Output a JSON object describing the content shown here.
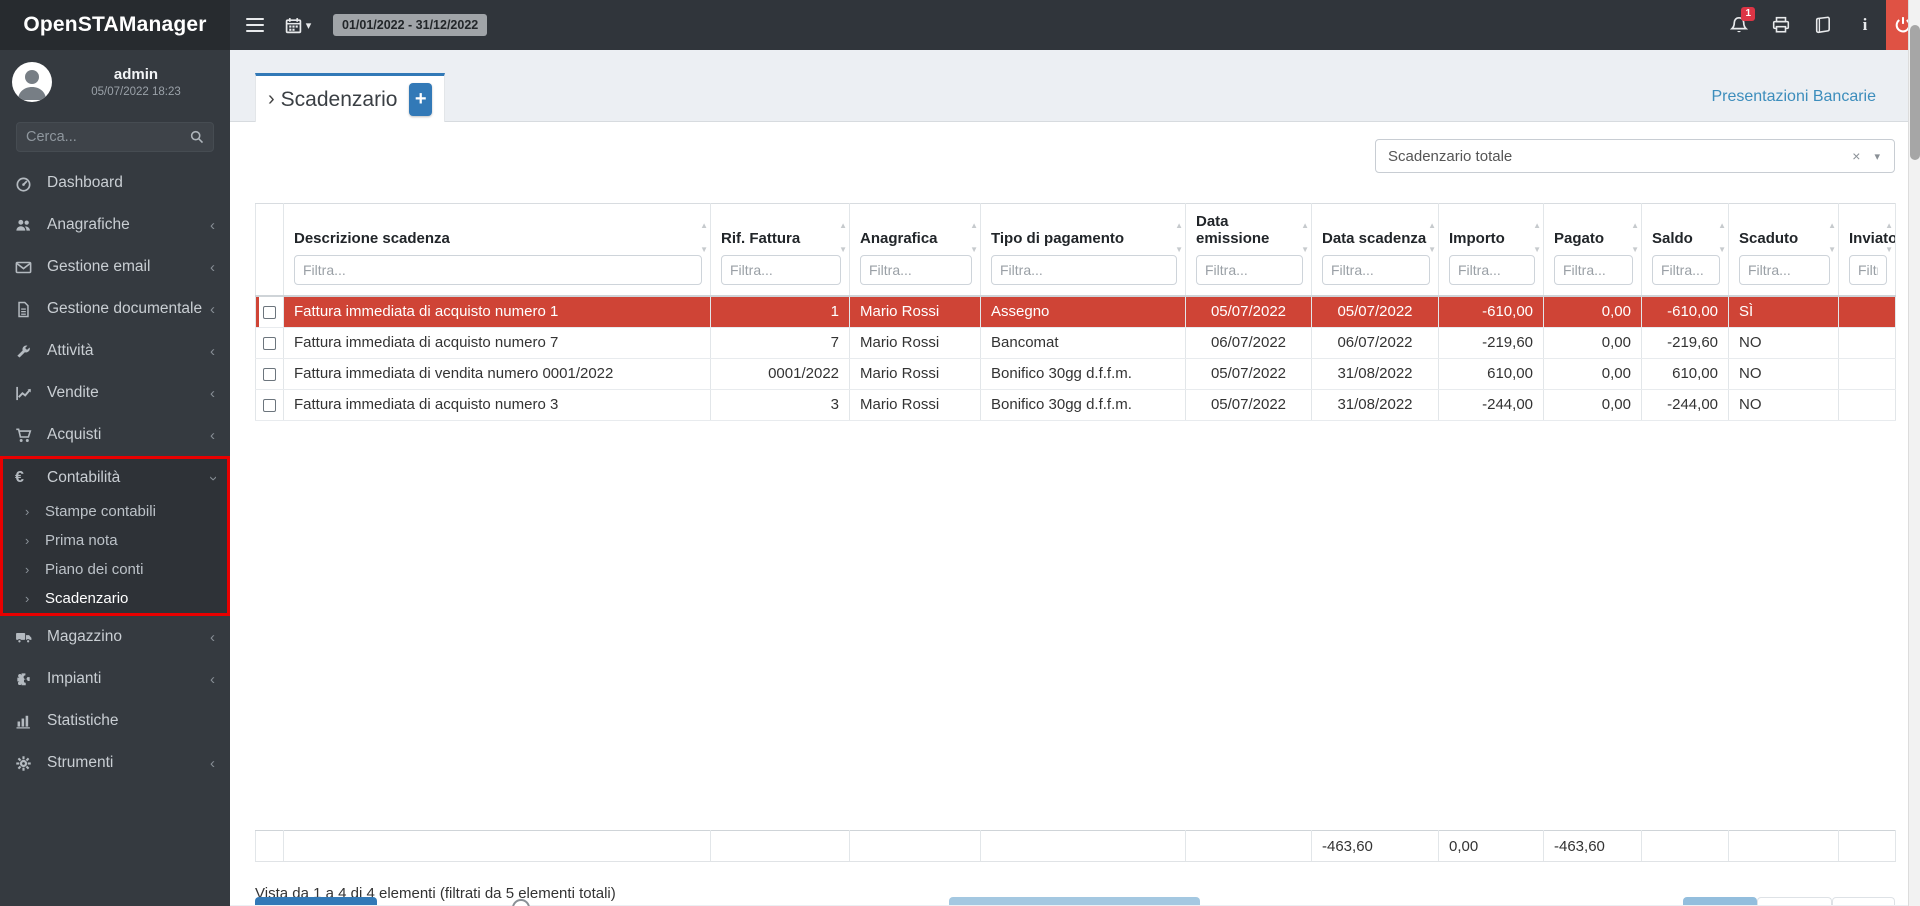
{
  "app": {
    "name": "OpenSTAManager"
  },
  "colors": {
    "accent": "#3279b7",
    "highlight_row": "#cf4436",
    "logout_bg": "#df5244",
    "annotation_box": "#e80000"
  },
  "topbar": {
    "date_range": "01/01/2022 - 31/12/2022",
    "notifications_count": "1",
    "caret": "▾"
  },
  "sidebar": {
    "user": {
      "name": "admin",
      "datetime": "05/07/2022 18:23"
    },
    "search_placeholder": "Cerca...",
    "items": [
      {
        "icon": "tachometer-icon",
        "label": "Dashboard",
        "chevron": ""
      },
      {
        "icon": "users-icon",
        "label": "Anagrafiche",
        "chevron": "‹"
      },
      {
        "icon": "envelope-icon",
        "label": "Gestione email",
        "chevron": "‹"
      },
      {
        "icon": "file-icon",
        "label": "Gestione documentale",
        "chevron": "‹"
      },
      {
        "icon": "wrench-icon",
        "label": "Attività",
        "chevron": "‹"
      },
      {
        "icon": "chart-line-icon",
        "label": "Vendite",
        "chevron": "‹"
      },
      {
        "icon": "cart-icon",
        "label": "Acquisti",
        "chevron": "‹"
      },
      {
        "icon": "euro-icon",
        "label": "Contabilità",
        "chevron": "‹",
        "expanded": true,
        "submenu": [
          "Stampe contabili",
          "Prima nota",
          "Piano dei conti",
          "Scadenzario"
        ],
        "active_submenu": "Scadenzario"
      },
      {
        "icon": "truck-icon",
        "label": "Magazzino",
        "chevron": "‹"
      },
      {
        "icon": "puzzle-icon",
        "label": "Impianti",
        "chevron": "‹"
      },
      {
        "icon": "bar-chart-icon",
        "label": "Statistiche",
        "chevron": ""
      },
      {
        "icon": "gear-icon",
        "label": "Strumenti",
        "chevron": "‹"
      }
    ]
  },
  "main": {
    "tab_title": "Scadenzario",
    "tab_arrow": "›",
    "add_button": "+",
    "bank_link": "Presentazioni Bancarie",
    "filter_select": {
      "value": "Scadenzario totale",
      "clear": "×",
      "caret": "▾"
    },
    "table": {
      "filter_placeholder": "Filtra...",
      "columns": [
        "Descrizione scadenza",
        "Rif. Fattura",
        "Anagrafica",
        "Tipo di pagamento",
        "Data emissione",
        "Data scadenza",
        "Importo",
        "Pagato",
        "Saldo",
        "Scaduto",
        "Inviato"
      ],
      "rows": [
        {
          "highlight": true,
          "cells": [
            "Fattura immediata di acquisto numero 1",
            "1",
            "Mario Rossi",
            "Assegno",
            "05/07/2022",
            "05/07/2022",
            "-610,00",
            "0,00",
            "-610,00",
            "SÌ",
            ""
          ]
        },
        {
          "highlight": false,
          "cells": [
            "Fattura immediata di acquisto numero 7",
            "7",
            "Mario Rossi",
            "Bancomat",
            "06/07/2022",
            "06/07/2022",
            "-219,60",
            "0,00",
            "-219,60",
            "NO",
            ""
          ]
        },
        {
          "highlight": false,
          "cells": [
            "Fattura immediata di vendita numero 0001/2022",
            "0001/2022",
            "Mario Rossi",
            "Bonifico 30gg d.f.f.m.",
            "05/07/2022",
            "31/08/2022",
            "610,00",
            "0,00",
            "610,00",
            "NO",
            ""
          ]
        },
        {
          "highlight": false,
          "cells": [
            "Fattura immediata di acquisto numero 3",
            "3",
            "Mario Rossi",
            "Bonifico 30gg d.f.f.m.",
            "05/07/2022",
            "31/08/2022",
            "-244,00",
            "0,00",
            "-244,00",
            "NO",
            ""
          ]
        }
      ],
      "footer_cells": [
        "",
        "",
        "",
        "",
        "",
        "-463,60",
        "0,00",
        "-463,60",
        "",
        "",
        ""
      ]
    },
    "info": "Vista da 1 a 4 di 4 elementi (filtrati da 5 elementi totali)"
  }
}
